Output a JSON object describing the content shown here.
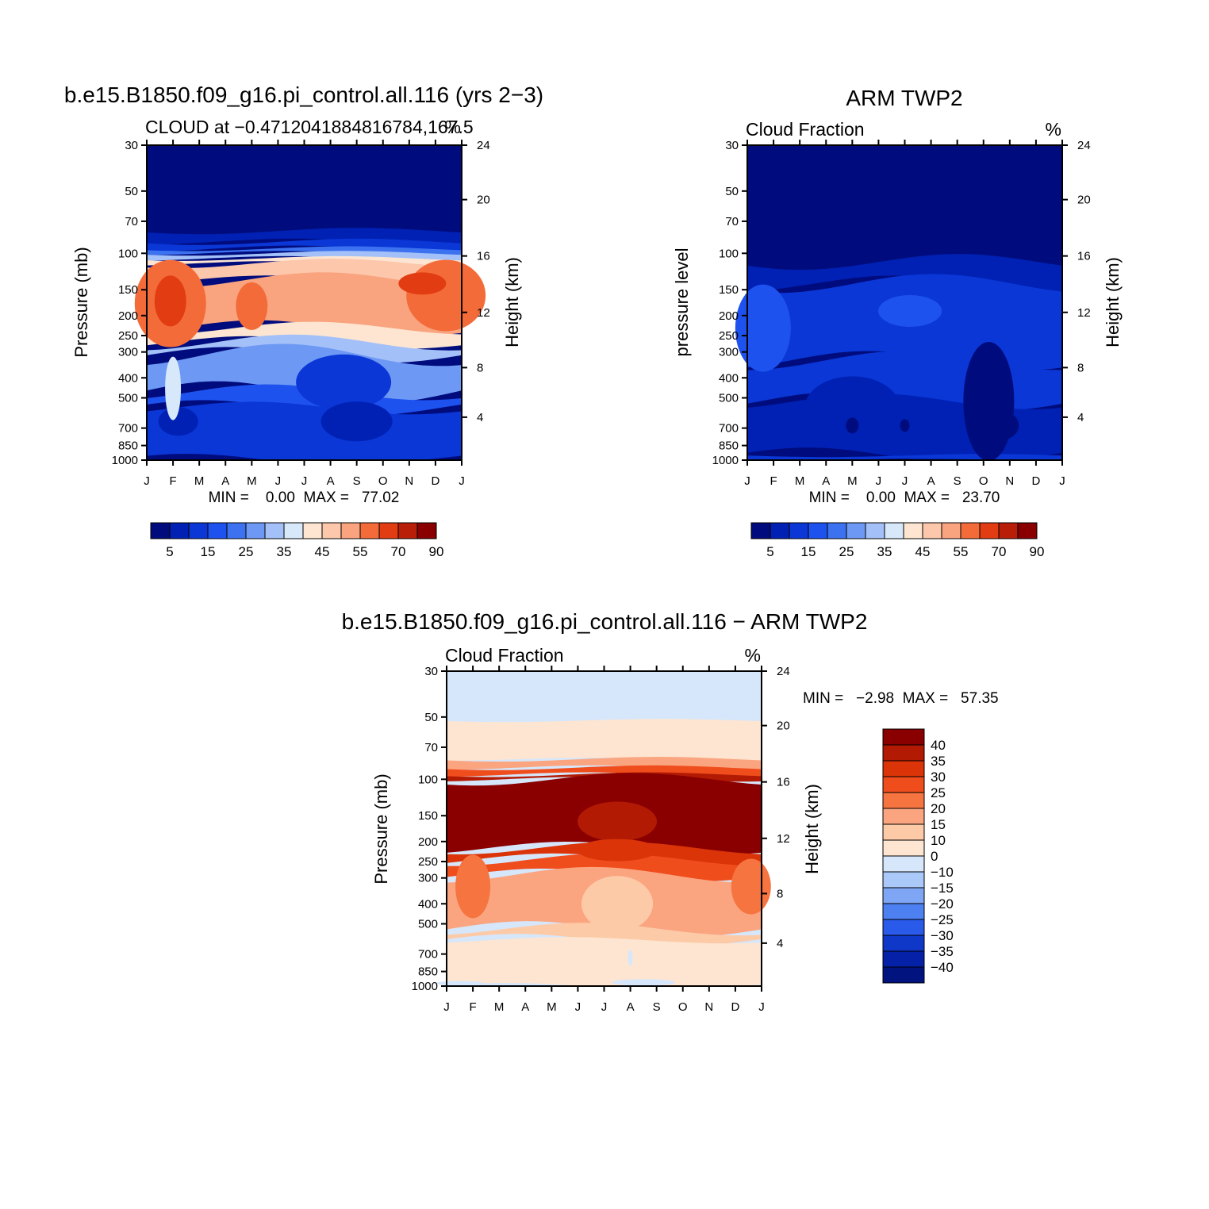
{
  "colors": {
    "seq_palette": [
      "#000c7d",
      "#0021b4",
      "#0a37d6",
      "#1e52ef",
      "#3c72f0",
      "#6d98f3",
      "#a3c0f8",
      "#d8e8fb",
      "#fde5d1",
      "#fdc7ac",
      "#f9a47f",
      "#f46b3a",
      "#e23d12",
      "#b81e08",
      "#8a0000"
    ],
    "diff_palette": [
      "#8a0000",
      "#b21a04",
      "#da3408",
      "#f04d1d",
      "#f6743f",
      "#faa580",
      "#fdcaa8",
      "#fde5d1",
      "#d6e7fb",
      "#aac8f8",
      "#7ea6f4",
      "#4d80f0",
      "#2a5ae9",
      "#1038c8",
      "#0421a8",
      "#00137f"
    ]
  },
  "charts": [
    {
      "id": "model",
      "title": "b.e15.B1850.f09_g16.pi_control.all.116 (yrs 2−3)",
      "subtitle_left": "CLOUD at −0.4712041884816784,167.5",
      "subtitle_right": "%",
      "ylabel_left": "Pressure (mb)",
      "ylabel_right": "Height (km)",
      "minmax": "MIN =    0.00  MAX =   77.02"
    },
    {
      "id": "obs",
      "title": "ARM TWP2",
      "subtitle_left": "Cloud Fraction",
      "subtitle_right": "%",
      "ylabel_left": "pressure level",
      "ylabel_right": "Height (km)",
      "minmax": "MIN =    0.00  MAX =   23.70"
    },
    {
      "id": "diff",
      "title": "b.e15.B1850.f09_g16.pi_control.all.116 − ARM TWP2",
      "subtitle_left": "Cloud Fraction",
      "subtitle_right": "%",
      "ylabel_left": "Pressure (mb)",
      "ylabel_right": "Height (km)",
      "minmax": "MIN =   −2.98  MAX =   57.35"
    }
  ],
  "chart_data": [
    {
      "type": "heatmap",
      "title": "b.e15.B1850.f09_g16.pi_control.all.116 (yrs 2-3)",
      "subtitle": "CLOUD at -0.4712041884816784,167.5",
      "units": "%",
      "x": [
        "J",
        "F",
        "M",
        "A",
        "M",
        "J",
        "J",
        "A",
        "S",
        "O",
        "N",
        "D",
        "J"
      ],
      "y_pressure_ticks": [
        30,
        50,
        70,
        100,
        150,
        200,
        250,
        300,
        400,
        500,
        700,
        850,
        1000
      ],
      "y_height_ticks": [
        24,
        20,
        16,
        12,
        8,
        4
      ],
      "ylabel": "Pressure (mb)",
      "ylabel_right": "Height (km)",
      "colorbar_labels": [
        "5",
        "15",
        "25",
        "35",
        "45",
        "55",
        "70",
        "90"
      ],
      "min": 0.0,
      "max": 77.02,
      "profile": [
        [
          30,
          0
        ],
        [
          70,
          0
        ],
        [
          80,
          5
        ],
        [
          90,
          15
        ],
        [
          100,
          35
        ],
        [
          130,
          60
        ],
        [
          170,
          65
        ],
        [
          220,
          55
        ],
        [
          280,
          30
        ],
        [
          350,
          22
        ],
        [
          450,
          15
        ],
        [
          600,
          8
        ],
        [
          800,
          7
        ],
        [
          1000,
          5
        ]
      ]
    },
    {
      "type": "heatmap",
      "title": "ARM TWP2",
      "subtitle": "Cloud Fraction",
      "units": "%",
      "x": [
        "J",
        "F",
        "M",
        "A",
        "M",
        "J",
        "J",
        "A",
        "S",
        "O",
        "N",
        "D",
        "J"
      ],
      "y_pressure_ticks": [
        30,
        50,
        70,
        100,
        150,
        200,
        250,
        300,
        400,
        500,
        700,
        850,
        1000
      ],
      "y_height_ticks": [
        24,
        20,
        16,
        12,
        8,
        4
      ],
      "ylabel": "pressure level",
      "ylabel_right": "Height (km)",
      "colorbar_labels": [
        "5",
        "15",
        "25",
        "35",
        "45",
        "55",
        "70",
        "90"
      ],
      "min": 0.0,
      "max": 23.7,
      "profile": [
        [
          30,
          0
        ],
        [
          90,
          0
        ],
        [
          120,
          3
        ],
        [
          160,
          9
        ],
        [
          220,
          14
        ],
        [
          300,
          12
        ],
        [
          450,
          8
        ],
        [
          600,
          4
        ],
        [
          800,
          3
        ],
        [
          1000,
          5
        ]
      ]
    },
    {
      "type": "heatmap",
      "title": "b.e15.B1850.f09_g16.pi_control.all.116 - ARM TWP2",
      "subtitle": "Cloud Fraction",
      "units": "%",
      "x": [
        "J",
        "F",
        "M",
        "A",
        "M",
        "J",
        "J",
        "A",
        "S",
        "O",
        "N",
        "D",
        "J"
      ],
      "y_pressure_ticks": [
        30,
        50,
        70,
        100,
        150,
        200,
        250,
        300,
        400,
        500,
        700,
        850,
        1000
      ],
      "y_height_ticks": [
        24,
        20,
        16,
        12,
        8,
        4
      ],
      "ylabel": "Pressure (mb)",
      "ylabel_right": "Height (km)",
      "colorbar_labels": [
        "40",
        "35",
        "30",
        "25",
        "20",
        "15",
        "10",
        "0",
        "−10",
        "−15",
        "−20",
        "−25",
        "−30",
        "−35",
        "−40"
      ],
      "min": -2.98,
      "max": 57.35,
      "profile": [
        [
          30,
          -5
        ],
        [
          50,
          5
        ],
        [
          80,
          8
        ],
        [
          90,
          20
        ],
        [
          100,
          40
        ],
        [
          150,
          45
        ],
        [
          200,
          40
        ],
        [
          250,
          30
        ],
        [
          300,
          22
        ],
        [
          400,
          15
        ],
        [
          500,
          12
        ],
        [
          700,
          5
        ],
        [
          1000,
          5
        ]
      ]
    }
  ],
  "month_labels": [
    "J",
    "F",
    "M",
    "A",
    "M",
    "J",
    "J",
    "A",
    "S",
    "O",
    "N",
    "D",
    "J"
  ],
  "pressure_ticks": [
    "30",
    "50",
    "70",
    "100",
    "150",
    "200",
    "250",
    "300",
    "400",
    "500",
    "700",
    "850",
    "1000"
  ],
  "height_ticks": [
    "24",
    "20",
    "16",
    "12",
    "8",
    "4"
  ],
  "seq_colorbar_labels": [
    "5",
    "15",
    "25",
    "35",
    "45",
    "55",
    "70",
    "90"
  ],
  "diff_colorbar_labels": [
    "40",
    "35",
    "30",
    "25",
    "20",
    "15",
    "10",
    "0",
    "−10",
    "−15",
    "−20",
    "−25",
    "−30",
    "−35",
    "−40"
  ]
}
